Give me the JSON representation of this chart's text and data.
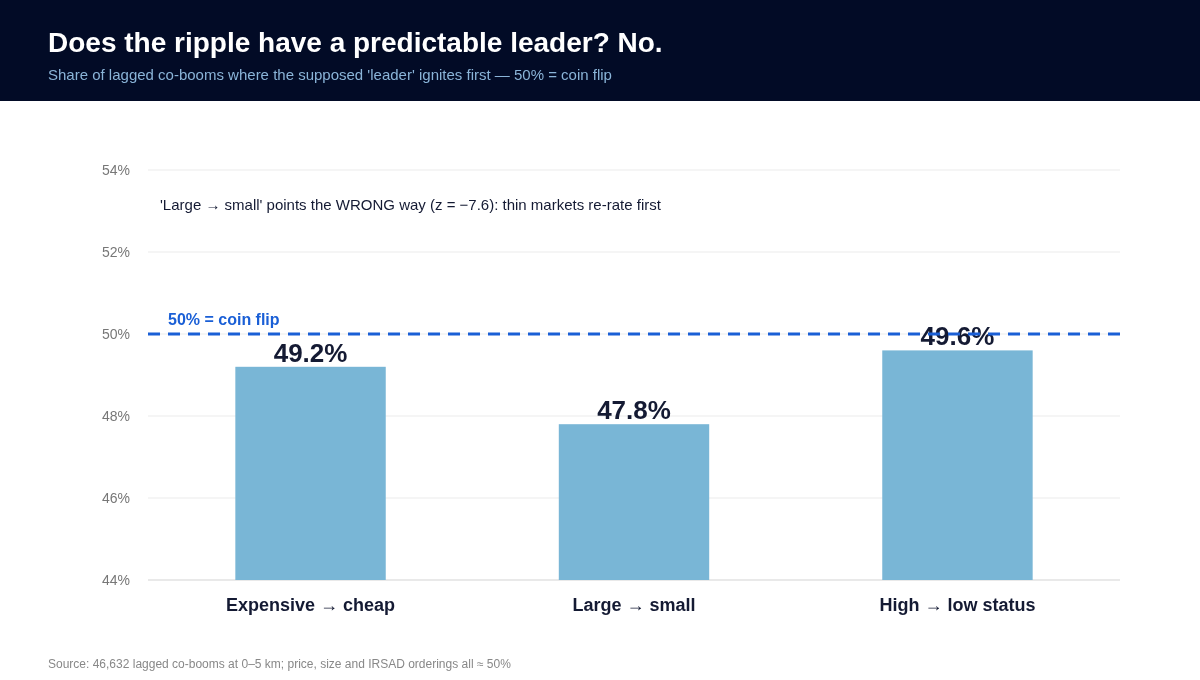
{
  "chart_data": {
    "type": "bar",
    "title": "Does the ripple have a predictable leader? No.",
    "subtitle": "Share of lagged co-booms where the supposed 'leader' ignites first — 50% = coin flip",
    "categories": [
      "Expensive → cheap",
      "Large → small",
      "High → low status"
    ],
    "values": [
      49.2,
      47.8,
      49.6
    ],
    "value_labels": [
      "49.2%",
      "47.8%",
      "49.6%"
    ],
    "color": "#79b6d6",
    "ylim": [
      44,
      54
    ],
    "yticks": [
      {
        "value": 44,
        "label": "44%"
      },
      {
        "value": 46,
        "label": "46%"
      },
      {
        "value": 48,
        "label": "48%"
      },
      {
        "value": 50,
        "label": "50%"
      },
      {
        "value": 52,
        "label": "52%"
      },
      {
        "value": 54,
        "label": "54%"
      }
    ],
    "grid": "y",
    "ref_lines": [
      {
        "axis": "y",
        "value": 50,
        "label": "50% = coin flip",
        "color": "#1a5fd6",
        "line_style": "dashed"
      }
    ],
    "annotations": [
      "'Large → small' points the WRONG way (z = −7.6): thin markets re-rate first",
      "Source: 46,632 lagged co-booms at 0–5 km; price, size and IRSAD orderings all ≈ 50%"
    ]
  }
}
